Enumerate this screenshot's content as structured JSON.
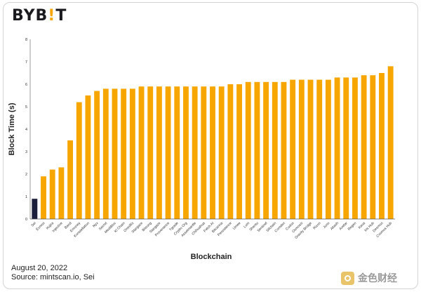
{
  "brand": {
    "name_prefix": "BYB",
    "name_accent": "!",
    "name_suffix": "T"
  },
  "footer": {
    "date": "August 20, 2022",
    "source": "Source: mintscan.io, Sei"
  },
  "watermark": {
    "text": "金色财经"
  },
  "colors": {
    "bar": "#f7a600",
    "highlight_bar": "#1b1f3b",
    "axis": "#555555",
    "tick": "#333333"
  },
  "chart_data": {
    "type": "bar",
    "title": "",
    "xlabel": "Blockchain",
    "ylabel": "Block Time (s)",
    "ylim": [
      0,
      8
    ],
    "yticks": [
      0,
      1,
      2,
      3,
      4,
      5,
      6,
      7,
      8
    ],
    "grid": false,
    "legend": "none",
    "highlight": [
      "Sei"
    ],
    "categories": [
      "Sei",
      "Evmos",
      "Kujira",
      "Injective",
      "Band",
      "Emoney",
      "Konstellation",
      "Nyx",
      "Secret",
      "MediBloc",
      "Ki Chain",
      "Omniflix",
      "Stargaze",
      "Bitsong",
      "Stargaze",
      "Provenance",
      "Tgrade",
      "Crypto Org",
      "Assetmantle",
      "Chihuahua",
      "Fetch AI",
      "Bitcanna",
      "Persistence",
      "Umee",
      "Lum",
      "Shentu",
      "Sentinel",
      "Sifchain",
      "Comdex",
      "Cudos",
      "Osmosis",
      "Gravity Bridge",
      "Rizon",
      "Juno",
      "Akash",
      "Axelar",
      "Regen",
      "Kava",
      "Iris Hub",
      "Desmos",
      "Cosmos Hub"
    ],
    "values": [
      0.9,
      1.9,
      2.2,
      2.3,
      3.5,
      5.2,
      5.5,
      5.7,
      5.8,
      5.8,
      5.8,
      5.8,
      5.9,
      5.9,
      5.9,
      5.9,
      5.9,
      5.9,
      5.9,
      5.9,
      5.9,
      5.9,
      6.0,
      6.0,
      6.1,
      6.1,
      6.1,
      6.1,
      6.1,
      6.2,
      6.2,
      6.2,
      6.2,
      6.2,
      6.3,
      6.3,
      6.3,
      6.4,
      6.4,
      6.5,
      6.8
    ]
  }
}
